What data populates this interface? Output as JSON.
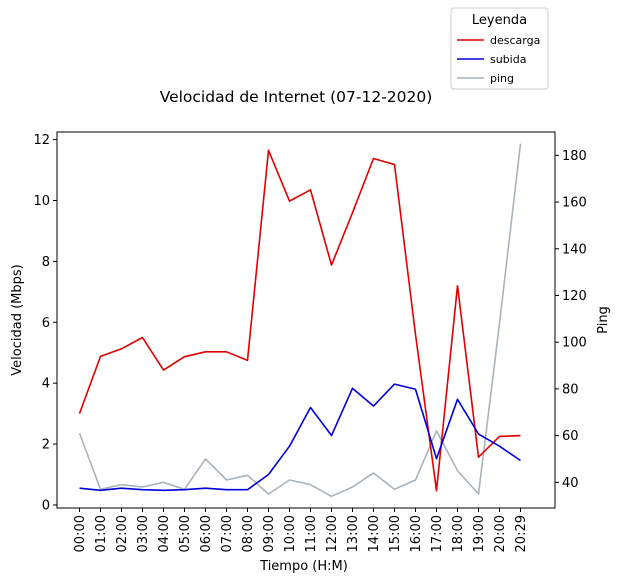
{
  "chart_data": {
    "type": "line",
    "title": "Velocidad de Internet (07-12-2020)",
    "xlabel": "Tiempo (H:M)",
    "ylabel": "Velocidad (Mbps)",
    "y2label": "Ping",
    "categories": [
      "00:00",
      "01:00",
      "02:00",
      "03:00",
      "04:00",
      "05:00",
      "06:00",
      "07:00",
      "08:00",
      "09:00",
      "10:00",
      "11:00",
      "12:00",
      "13:00",
      "14:00",
      "15:00",
      "16:00",
      "17:00",
      "18:00",
      "19:00",
      "20:00",
      "20:29"
    ],
    "ylim": [
      -0.1,
      12.25
    ],
    "y2lim": [
      29,
      190
    ],
    "yticks": [
      0,
      2,
      4,
      6,
      8,
      10,
      12
    ],
    "y2ticks": [
      40,
      60,
      80,
      100,
      120,
      140,
      160,
      180
    ],
    "grid": false,
    "legend": {
      "title": "Leyenda",
      "placement": "top-right, outside above axes"
    },
    "series": [
      {
        "name": "descarga",
        "axis": "left",
        "color": "#e00000",
        "values": [
          3.0,
          4.88,
          5.13,
          5.5,
          4.43,
          4.87,
          5.03,
          5.03,
          4.75,
          11.65,
          9.98,
          10.35,
          7.88,
          9.6,
          11.38,
          11.18,
          5.6,
          0.47,
          7.2,
          1.57,
          2.25,
          2.28
        ]
      },
      {
        "name": "subida",
        "axis": "left",
        "color": "#0000dd",
        "values": [
          0.55,
          0.48,
          0.55,
          0.5,
          0.48,
          0.5,
          0.55,
          0.5,
          0.5,
          1.0,
          1.93,
          3.2,
          2.28,
          3.83,
          3.25,
          3.97,
          3.8,
          1.52,
          3.47,
          2.33,
          1.93,
          1.46
        ]
      },
      {
        "name": "ping",
        "axis": "right",
        "color": "#a9b3bc",
        "values": [
          61,
          37,
          39,
          38,
          40,
          37,
          50,
          41,
          43,
          35,
          41,
          39,
          34,
          38,
          44,
          37,
          41,
          62,
          45,
          35,
          108,
          185
        ]
      }
    ]
  }
}
